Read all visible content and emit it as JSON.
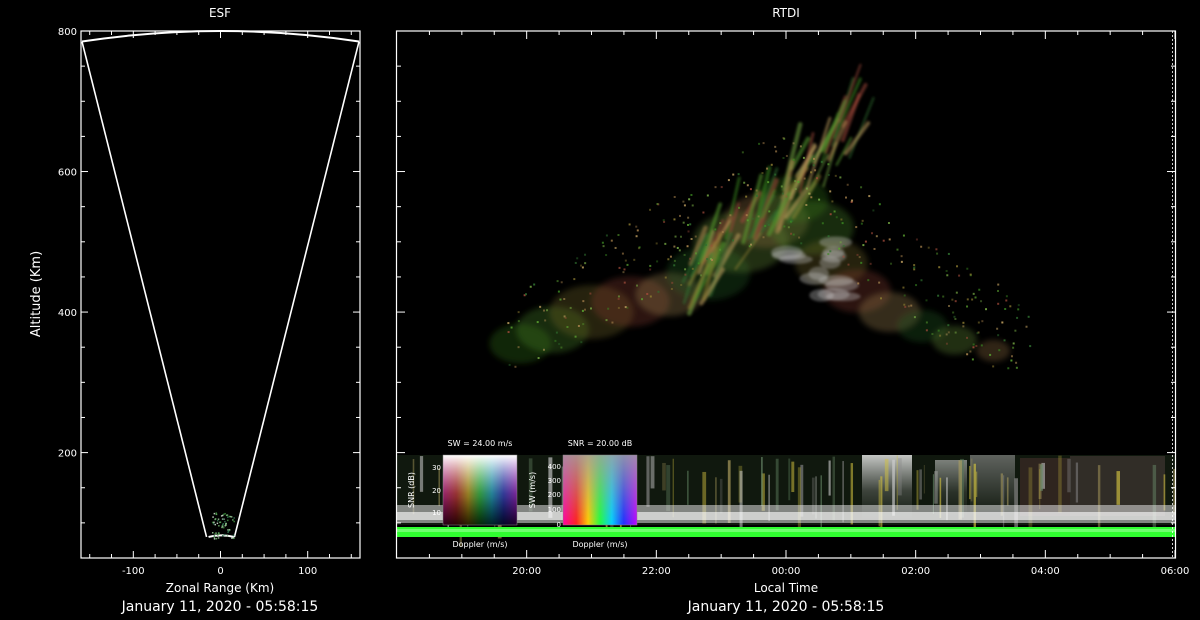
{
  "chart_data": [
    {
      "type": "scatter",
      "title": "ESF",
      "xlabel": "Zonal Range (Km)",
      "ylabel": "Altitude (Km)",
      "timestamp": "January 11, 2020 - 05:58:15",
      "xlim": [
        -160,
        160
      ],
      "ylim": [
        50,
        800
      ],
      "xticks": [
        -100,
        0,
        100
      ],
      "yticks": [
        200,
        400,
        600,
        800
      ],
      "fan": {
        "apex_range_km": [
          -16,
          16
        ],
        "apex_altitude_km": 80,
        "outer_range_km": [
          -160,
          160
        ],
        "outer_altitude_edge_km": 785,
        "outer_altitude_center_km": 800
      },
      "echo_patch": {
        "range_km": [
          -10,
          16
        ],
        "altitude_km": [
          78,
          115
        ]
      }
    },
    {
      "type": "heatmap",
      "title": "RTDI",
      "xlabel": "Local Time",
      "ylabel": "",
      "timestamp": "January 11, 2020 - 05:58:15",
      "xlim_hours": [
        18.0,
        30.0
      ],
      "ylim": [
        50,
        800
      ],
      "xticks": [
        {
          "hour": 20,
          "label": "20:00"
        },
        {
          "hour": 22,
          "label": "22:00"
        },
        {
          "hour": 24,
          "label": "00:00"
        },
        {
          "hour": 26,
          "label": "02:00"
        },
        {
          "hour": 28,
          "label": "04:00"
        },
        {
          "hour": 30,
          "label": "06:00"
        }
      ],
      "features": [
        {
          "name": "plume",
          "t_start": 19.7,
          "t_end": 27.8,
          "alt_low": 330,
          "alt_high": 660
        },
        {
          "name": "e-region-layer",
          "t_start": 18.0,
          "t_end": 30.0,
          "alt_low": 80,
          "alt_high": 195
        },
        {
          "name": "ground-clutter",
          "t_start": 18.0,
          "t_end": 30.0,
          "alt_low": 76,
          "alt_high": 84
        }
      ],
      "colorbar_sw_snr": {
        "title": "SW = 24.00 m/s",
        "xlabel": "Doppler (m/s)",
        "ylabel": "SNR (dB)",
        "yticks": [
          "30",
          "20",
          "10"
        ]
      },
      "colorbar_snr_sw": {
        "title": "SNR = 20.00 dB",
        "xlabel": "Doppler (m/s)",
        "ylabel": "SW (m/s)",
        "yticks": [
          "400",
          "300",
          "200",
          "100",
          "0"
        ]
      }
    }
  ]
}
